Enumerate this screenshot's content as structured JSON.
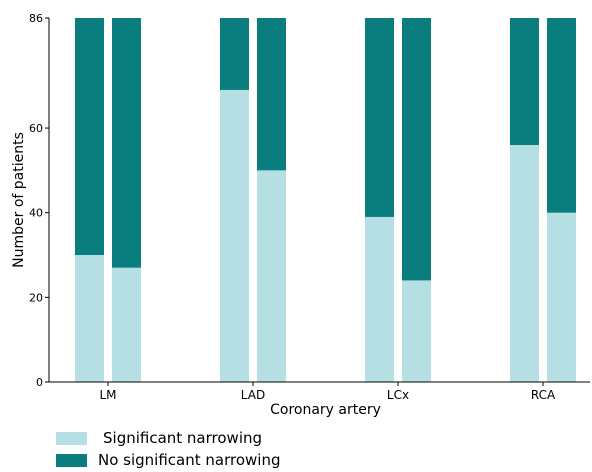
{
  "chart_data": {
    "type": "bar",
    "stacked": true,
    "categories": [
      "LM",
      "LAD",
      "LCx",
      "RCA"
    ],
    "bars_per_category": 2,
    "total": 86,
    "xlabel": "Coronary artery",
    "ylabel": "Number of patients",
    "ylim": [
      0,
      86
    ],
    "yticks": [
      0,
      20,
      40,
      60,
      86
    ],
    "grid": false,
    "legend_position": "bottom-left",
    "series": [
      {
        "name": "Significant narrowing",
        "color": "#b5dfe2",
        "values": [
          [
            30,
            27
          ],
          [
            69,
            50
          ],
          [
            39,
            24
          ],
          [
            56,
            40
          ]
        ]
      },
      {
        "name": "No significant narrowing",
        "color": "#0a7e7e",
        "values": [
          [
            56,
            59
          ],
          [
            17,
            36
          ],
          [
            47,
            62
          ],
          [
            30,
            46
          ]
        ]
      }
    ]
  }
}
